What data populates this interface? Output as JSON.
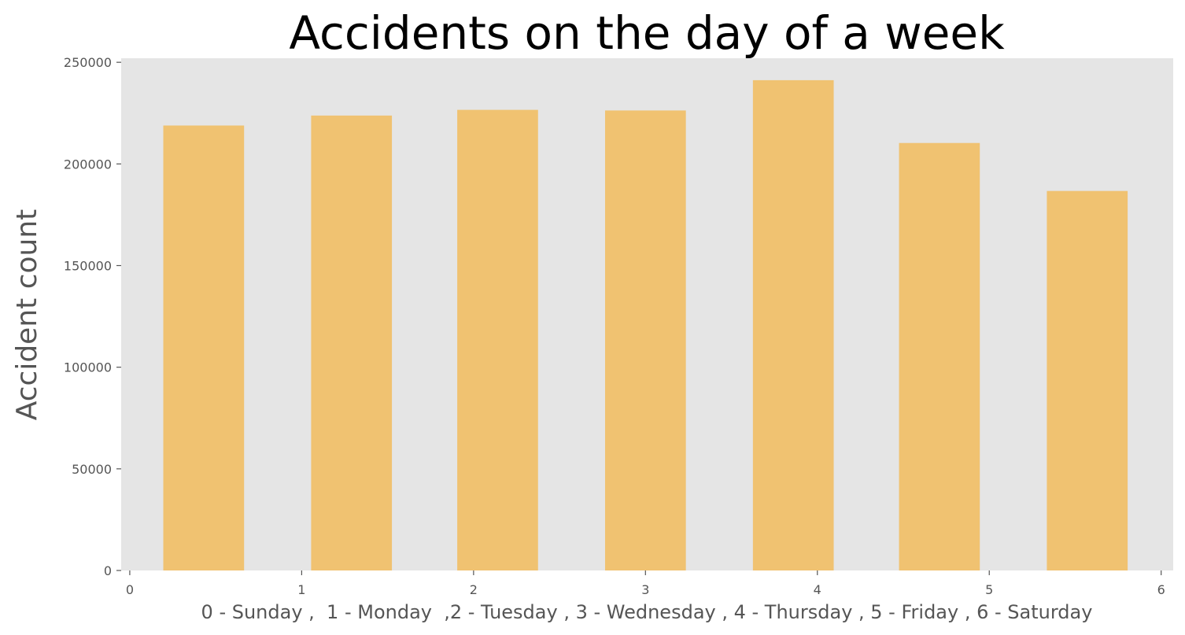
{
  "chart_data": {
    "type": "bar",
    "title": "Accidents on the day of a week",
    "xlabel": "0 - Sunday ,  1 - Monday  ,2 - Tuesday , 3 - Wednesday , 4 - Thursday , 5 - Friday , 6 - Saturday",
    "ylabel": "Accident count",
    "x_ticks": [
      "0",
      "1",
      "2",
      "3",
      "4",
      "5",
      "6"
    ],
    "y_ticks": [
      "0",
      "50000",
      "100000",
      "150000",
      "200000",
      "250000"
    ],
    "xlim": [
      -0.05,
      6.07
    ],
    "ylim": [
      0,
      252000
    ],
    "bar_centers": [
      0.43,
      1.29,
      2.14,
      3.0,
      3.86,
      4.71,
      5.57
    ],
    "bar_width": 0.47,
    "values": [
      218900,
      223800,
      226600,
      226300,
      241200,
      210300,
      186700
    ],
    "grid": false,
    "bar_color": "#F0C271",
    "plot_background": "#E5E5E5",
    "axis_color": "#555555"
  }
}
